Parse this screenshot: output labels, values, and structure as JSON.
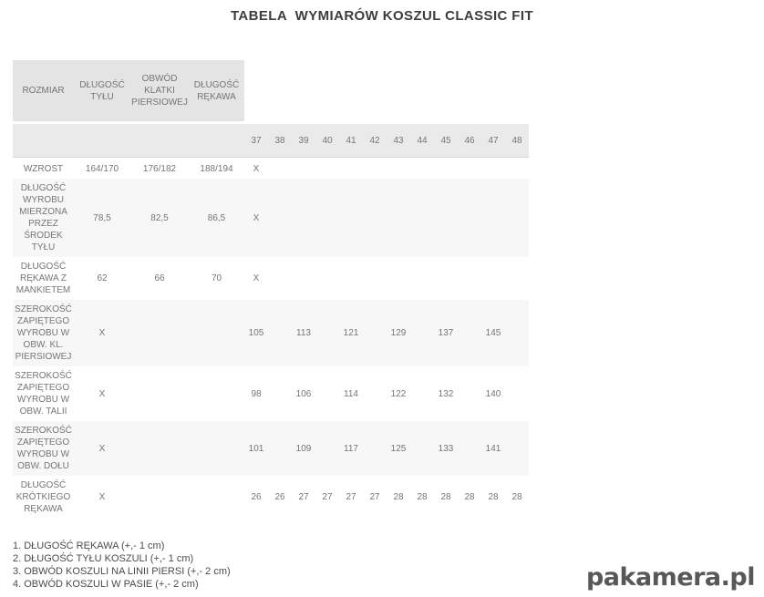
{
  "title": "TABELA  WYMIARÓW KOSZUL CLASSIC FIT",
  "table": {
    "header_columns": [
      "ROZMIAR",
      "DŁUGOŚĆ TYŁU",
      "OBWÓD KLATKI PIERSIOWEJ",
      "DŁUGOŚĆ RĘKAWA"
    ],
    "sizes": [
      "37",
      "38",
      "39",
      "40",
      "41",
      "42",
      "43",
      "44",
      "45",
      "46",
      "47",
      "48"
    ],
    "rows": [
      {
        "shaded": false,
        "cells": [
          "WZROST",
          "164/170",
          "176/182",
          "188/194",
          "X",
          "",
          "",
          "",
          "",
          "",
          "",
          "",
          "",
          "",
          "",
          ""
        ]
      },
      {
        "shaded": true,
        "cells": [
          "DŁUGOŚĆ WYROBU MIERZONA PRZEZ ŚRODEK TYŁU",
          "78,5",
          "82,5",
          "86,5",
          "X",
          "",
          "",
          "",
          "",
          "",
          "",
          "",
          "",
          "",
          "",
          ""
        ]
      },
      {
        "shaded": false,
        "cells": [
          "DŁUGOŚĆ RĘKAWA Z MANKIETEM",
          "62",
          "66",
          "70",
          "X",
          "",
          "",
          "",
          "",
          "",
          "",
          "",
          "",
          "",
          "",
          ""
        ]
      },
      {
        "shaded": true,
        "cells": [
          "SZEROKOŚĆ ZAPIĘTEGO WYROBU W OBW. KL. PIERSIOWEJ",
          "X",
          "",
          "",
          "105",
          "",
          "113",
          "",
          "121",
          "",
          "129",
          "",
          "137",
          "",
          "145",
          ""
        ]
      },
      {
        "shaded": false,
        "cells": [
          "SZEROKOŚĆ ZAPIĘTEGO WYROBU W OBW. TALII",
          "X",
          "",
          "",
          "98",
          "",
          "106",
          "",
          "114",
          "",
          "122",
          "",
          "132",
          "",
          "140",
          ""
        ]
      },
      {
        "shaded": true,
        "cells": [
          "SZEROKOŚĆ ZAPIĘTEGO WYROBU W OBW. DOŁU",
          "X",
          "",
          "",
          "101",
          "",
          "109",
          "",
          "117",
          "",
          "125",
          "",
          "133",
          "",
          "141",
          ""
        ]
      },
      {
        "shaded": false,
        "cells": [
          "DŁUGOŚĆ KRÓTKIEGO RĘKAWA",
          "X",
          "",
          "",
          "26",
          "26",
          "27",
          "27",
          "27",
          "27",
          "28",
          "28",
          "28",
          "28",
          "28",
          "28"
        ]
      }
    ]
  },
  "notes": [
    "1. DŁUGOŚĆ RĘKAWA (+,- 1 cm)",
    "2. DŁUGOŚĆ TYŁU KOSZULI (+,- 1 cm)",
    "3. OBWÓD KOSZULI NA LINII PIERSI (+,- 2 cm)",
    "4. OBWÓD KOSZULI W PASIE (+,- 2 cm)"
  ],
  "logo": {
    "text": "pakamera.pl"
  },
  "colors": {
    "header_bg": "#e4e4e4",
    "sizes_bg": "#eaeaea",
    "stripe_bg": "#f7f7f7",
    "table_text": "#757575",
    "title_text": "#3d3d3d",
    "notes_text": "#4b4b4b",
    "logo_text": "#58585a"
  }
}
